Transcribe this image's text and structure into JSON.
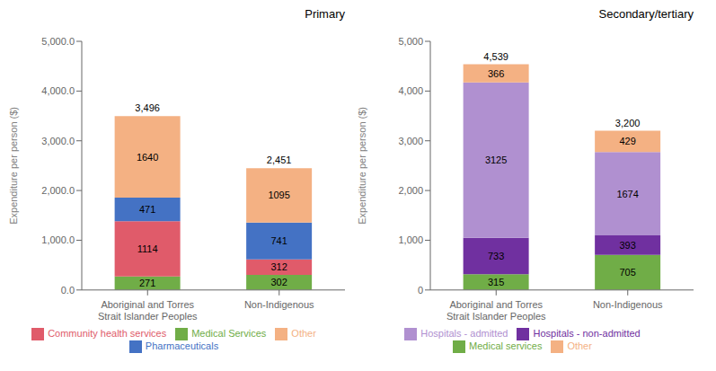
{
  "chart_data": [
    {
      "type": "bar",
      "stacked": true,
      "data_labels": true,
      "legend": "bottom",
      "grid": false,
      "title": "Primary",
      "categories": [
        "Aboriginal and Torres\nStrait Islander Peoples",
        "Non-Indigenous"
      ],
      "series": [
        {
          "name": "Medical Services",
          "values": [
            271,
            302
          ],
          "color": "#70ad47"
        },
        {
          "name": "Community health services",
          "values": [
            1114,
            312
          ],
          "color": "#e05b6a"
        },
        {
          "name": "Pharmaceuticals",
          "values": [
            471,
            741
          ],
          "color": "#4472c4"
        },
        {
          "name": "Other",
          "values": [
            1640,
            1095
          ],
          "color": "#f4b183"
        }
      ],
      "totals": [
        3496,
        2451
      ],
      "total_labels": [
        "3,496",
        "2,451"
      ],
      "ylabel": "Expenditure per person ($)",
      "ylim": [
        0,
        5000
      ],
      "yticks": [
        {
          "value": 0,
          "label": "0.0"
        },
        {
          "value": 1000,
          "label": "1,000.0"
        },
        {
          "value": 2000,
          "label": "2,000.0"
        },
        {
          "value": 3000,
          "label": "3,000.0"
        },
        {
          "value": 4000,
          "label": "4,000.0"
        },
        {
          "value": 5000,
          "label": "5,000.0"
        }
      ]
    },
    {
      "type": "bar",
      "stacked": true,
      "data_labels": true,
      "legend": "bottom",
      "grid": false,
      "title": "Secondary/tertiary",
      "categories": [
        "Aboriginal and Torres\nStrait Islander Peoples",
        "Non-Indigenous"
      ],
      "series": [
        {
          "name": "Medical services",
          "values": [
            315,
            705
          ],
          "color": "#70ad47"
        },
        {
          "name": "Hospitals - non-admitted",
          "values": [
            733,
            393
          ],
          "color": "#7030a0"
        },
        {
          "name": "Hospitals - admitted",
          "values": [
            3125,
            1674
          ],
          "color": "#b090d0"
        },
        {
          "name": "Other",
          "values": [
            366,
            429
          ],
          "color": "#f4b183"
        }
      ],
      "totals": [
        4539,
        3200
      ],
      "total_labels": [
        "4,539",
        "3,200"
      ],
      "ylabel": "Expenditure per person ($)",
      "ylim": [
        0,
        5000
      ],
      "yticks": [
        0,
        {
          "value": 1000,
          "label": "1,000"
        },
        {
          "value": 2000,
          "label": "2,000"
        },
        {
          "value": 3000,
          "label": "3,000"
        },
        {
          "value": 4000,
          "label": "4,000"
        },
        {
          "value": 5000,
          "label": "5,000"
        }
      ]
    }
  ]
}
